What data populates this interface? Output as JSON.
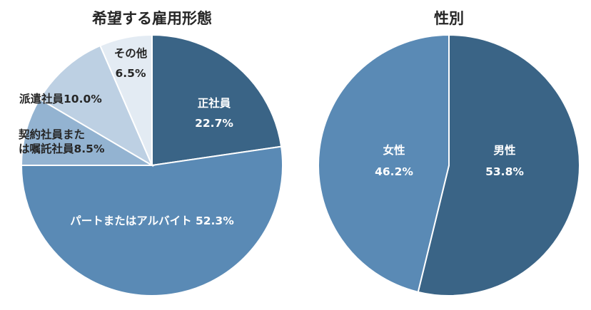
{
  "chart_data": [
    {
      "type": "pie",
      "title": "希望する雇用形態",
      "slices": [
        {
          "name": "正社員",
          "value": 22.7,
          "value_label": "22.7%",
          "color": "#3a6486",
          "label_color": "#ffffff"
        },
        {
          "name": "パートまたはアルバイト",
          "value": 52.3,
          "value_label": "52.3%",
          "color": "#5a8ab5",
          "label_color": "#ffffff"
        },
        {
          "name": "契約社員または嘱託社員",
          "value": 8.5,
          "value_label": "8.5%",
          "color": "#93b3d1",
          "label_color": "#262626"
        },
        {
          "name": "派遣社員",
          "value": 10.0,
          "value_label": "10.0%",
          "color": "#bdd0e3",
          "label_color": "#262626"
        },
        {
          "name": "その他",
          "value": 6.5,
          "value_label": "6.5%",
          "color": "#e3ebf3",
          "label_color": "#262626"
        }
      ],
      "start_angle_deg": 0,
      "direction": "clockwise",
      "legend": "none"
    },
    {
      "type": "pie",
      "title": "性別",
      "slices": [
        {
          "name": "男性",
          "value": 53.8,
          "value_label": "53.8%",
          "color": "#3a6486",
          "label_color": "#ffffff"
        },
        {
          "name": "女性",
          "value": 46.2,
          "value_label": "46.2%",
          "color": "#5a8ab5",
          "label_color": "#ffffff"
        }
      ],
      "start_angle_deg": 0,
      "direction": "clockwise",
      "legend": "none"
    }
  ]
}
